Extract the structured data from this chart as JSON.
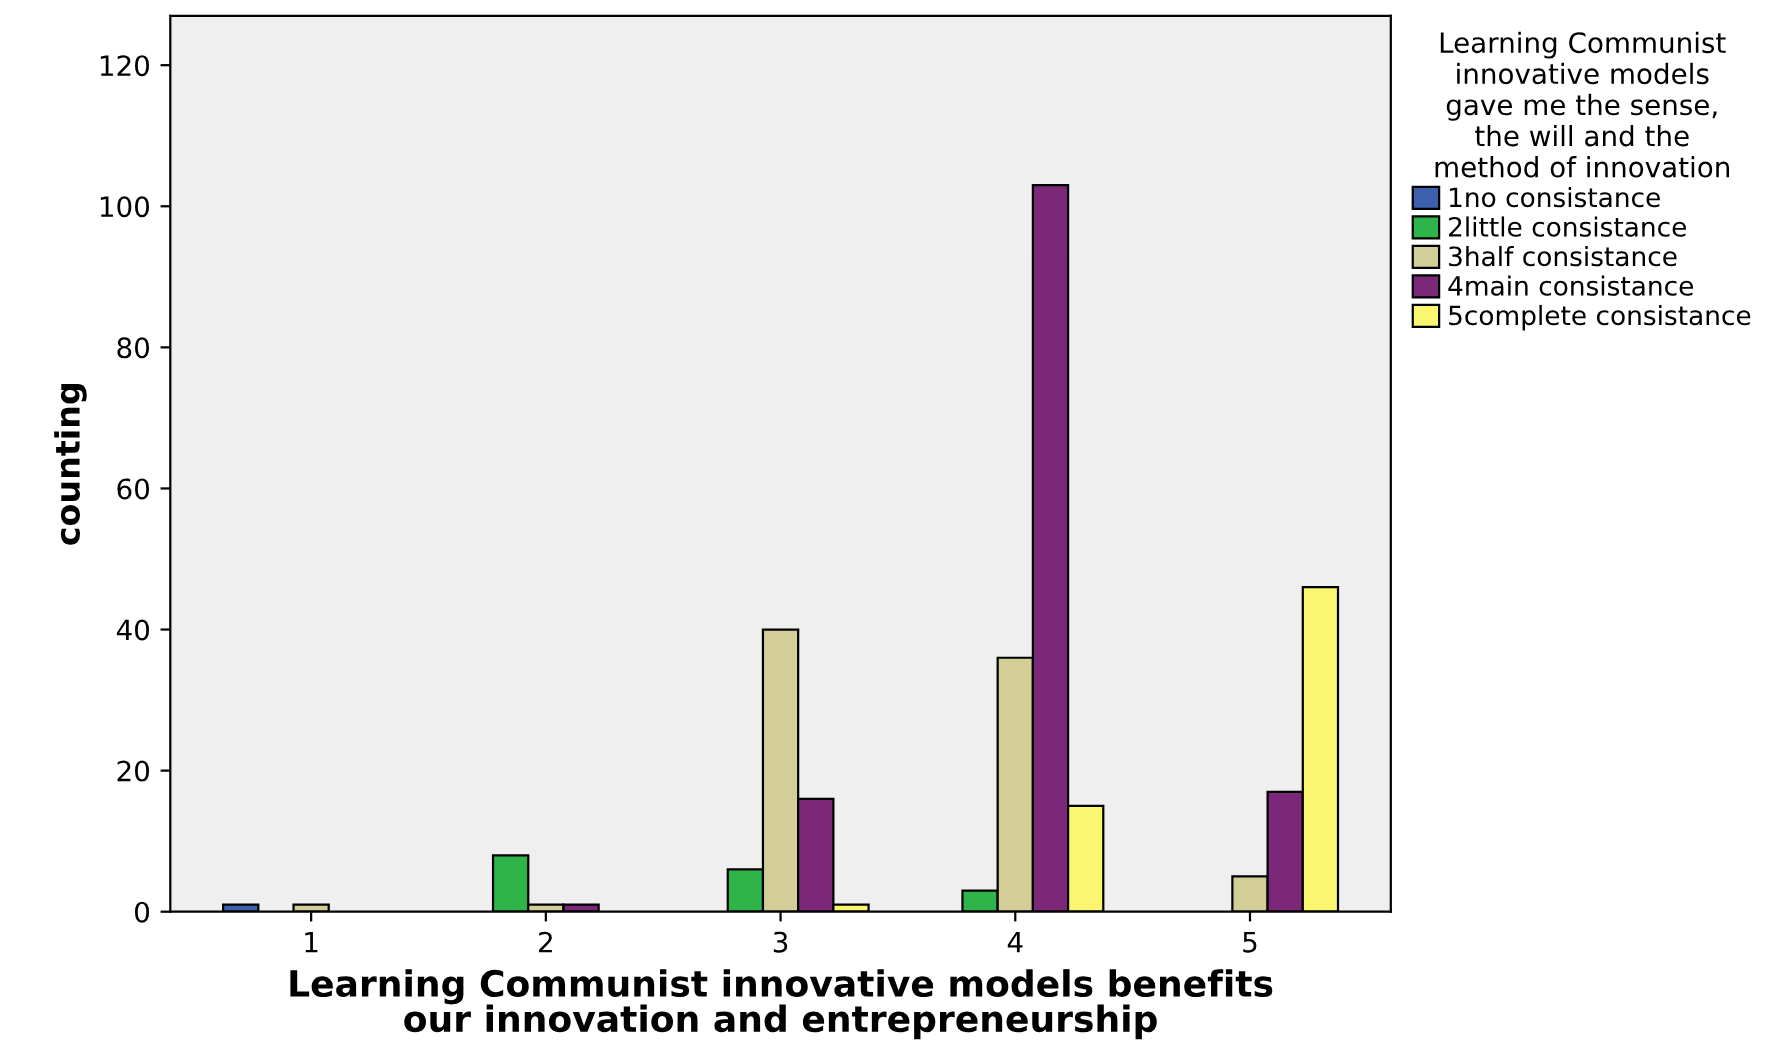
{
  "chart_data": {
    "type": "bar",
    "xlabel": "Learning Communist innovative models benefits\nour innovation and entrepreneurship",
    "ylabel": "counting",
    "legend_title": "Learning Communist\ninnovative models\ngave me the sense,\nthe will and the\nmethod of innovation",
    "categories": [
      "1",
      "2",
      "3",
      "4",
      "5"
    ],
    "series": [
      {
        "name": "1no consistance",
        "color": "#3c5fae",
        "values": [
          1,
          null,
          null,
          null,
          null
        ]
      },
      {
        "name": "2little consistance",
        "color": "#2fb44a",
        "values": [
          null,
          8,
          6,
          3,
          null
        ]
      },
      {
        "name": "3half consistance",
        "color": "#d3ce97",
        "values": [
          1,
          1,
          40,
          36,
          5
        ]
      },
      {
        "name": "4main consistance",
        "color": "#7b2879",
        "values": [
          null,
          1,
          16,
          103,
          17
        ]
      },
      {
        "name": "5complete consistance",
        "color": "#fbf66f",
        "values": [
          null,
          null,
          1,
          15,
          46
        ]
      }
    ],
    "ylim": [
      0,
      127
    ],
    "yticks": [
      0,
      20,
      40,
      60,
      80,
      100,
      120
    ],
    "grid": false,
    "legend": "right"
  }
}
